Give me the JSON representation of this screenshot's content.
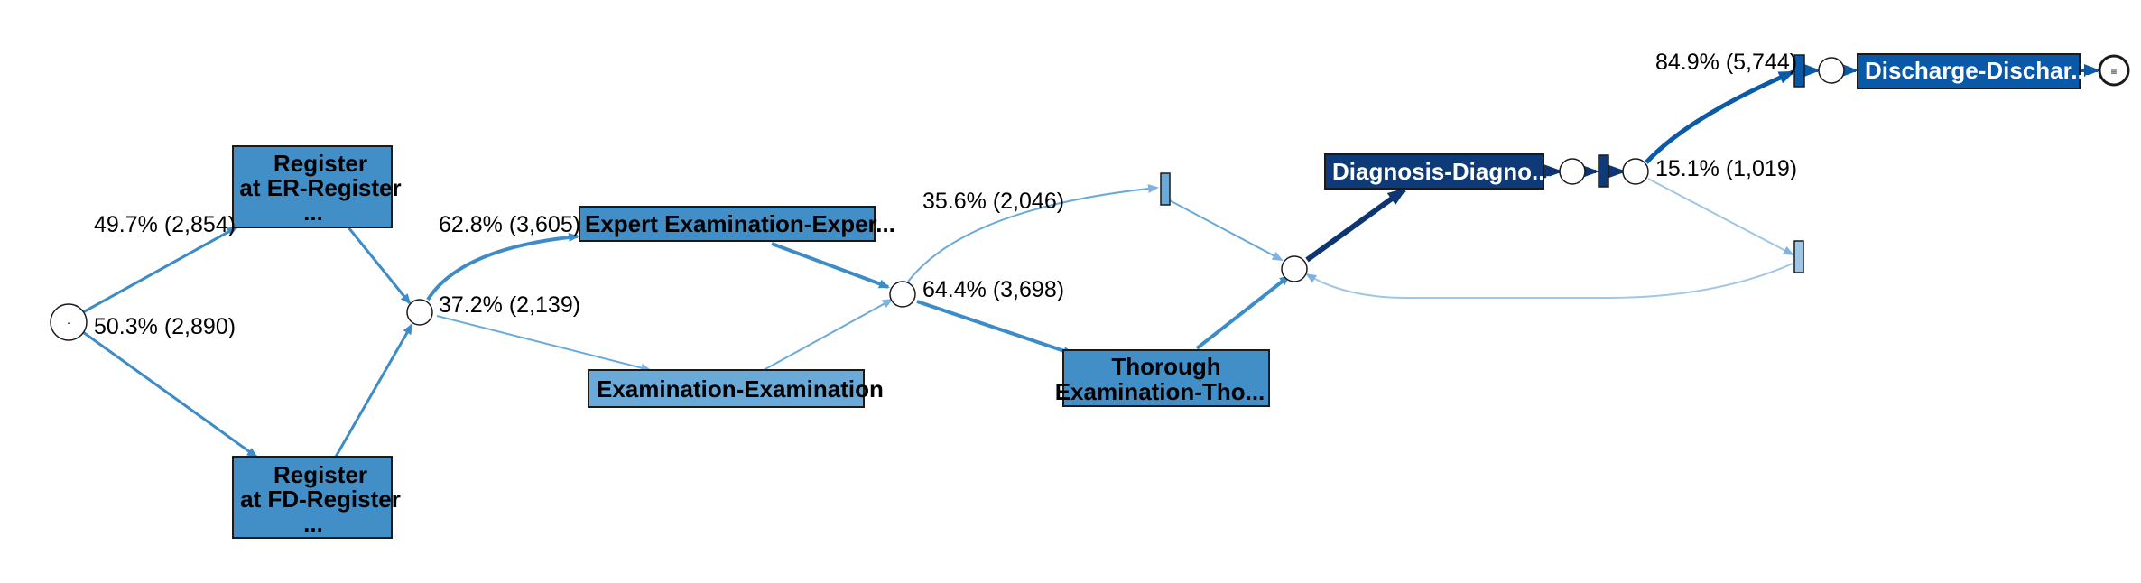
{
  "colors": {
    "activity_mid": "#428fc8",
    "activity_light": "#6aaad8",
    "activity_dark": "#0f3a78",
    "activity_strong": "#0a59a8",
    "edge_light": "#9fc6e6",
    "edge_mid": "#3d8cc8",
    "edge_dark": "#0d3573",
    "edge_strong": "#0b5aa8",
    "gateway_fill": "#ffffff",
    "outline": "#1a1a1a"
  },
  "activities": {
    "register_er": [
      "Register",
      "at ER-Register",
      "..."
    ],
    "register_fd": [
      "Register",
      "at FD-Register",
      "..."
    ],
    "expert_exam": [
      "Expert Examination-Exper..."
    ],
    "exam": [
      "Examination-Examination"
    ],
    "thorough_exam": [
      "Thorough",
      "Examination-Tho..."
    ],
    "diagnosis": [
      "Diagnosis-Diagno..."
    ],
    "discharge": [
      "Discharge-Dischar..."
    ]
  },
  "start_symbol": "·",
  "end_symbol": "≡",
  "edge_labels": {
    "to_er": "49.7% (2,854)",
    "to_fd": "50.3% (2,890)",
    "to_expert": "62.8% (3,605)",
    "to_exam": "37.2% (2,139)",
    "to_skip_thorough": "35.6% (2,046)",
    "to_thorough": "64.4% (3,698)",
    "to_discharge": "84.9% (5,744)",
    "to_loop": "15.1% (1,019)"
  }
}
